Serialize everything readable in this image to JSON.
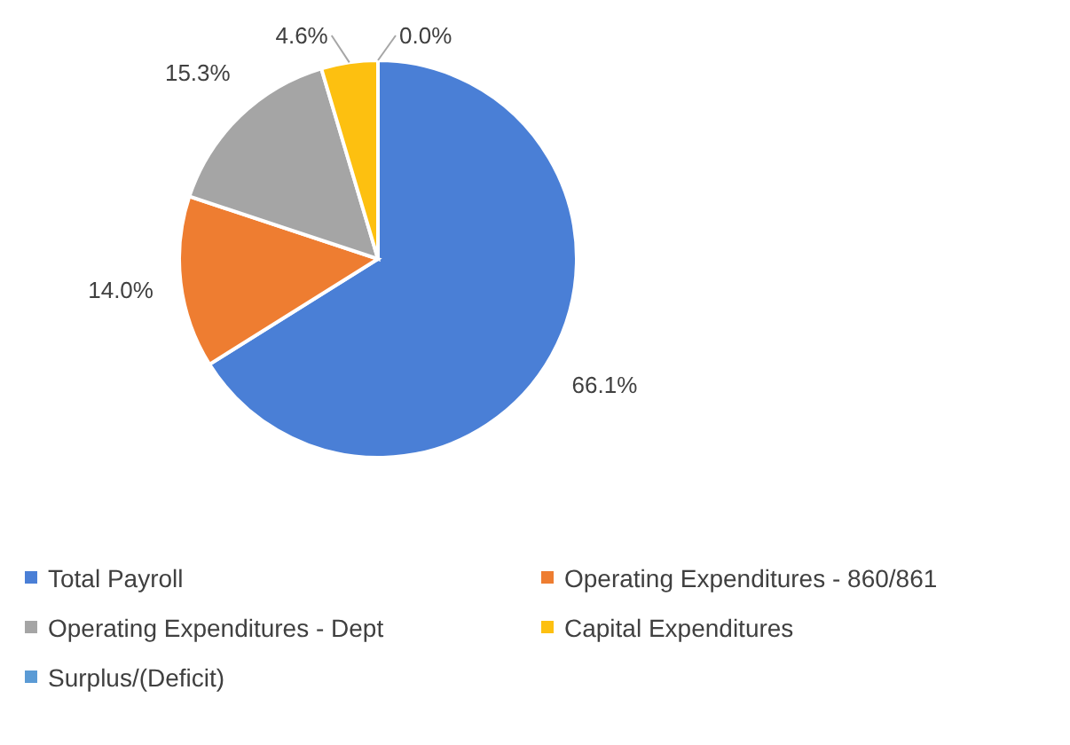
{
  "chart_data": {
    "type": "pie",
    "categories": [
      "Total Payroll",
      "Operating Expenditures - 860/861",
      "Operating Expenditures - Dept",
      "Capital Expenditures",
      "Surplus/(Deficit)"
    ],
    "values": [
      66.1,
      14.0,
      15.3,
      4.6,
      0.0
    ],
    "value_labels": [
      "66.1%",
      "14.0%",
      "15.3%",
      "4.6%",
      "0.0%"
    ],
    "colors": [
      "#4a7fd6",
      "#ee7d31",
      "#a5a5a5",
      "#fdc010",
      "#5b9bd5"
    ],
    "legend": "bottom"
  }
}
